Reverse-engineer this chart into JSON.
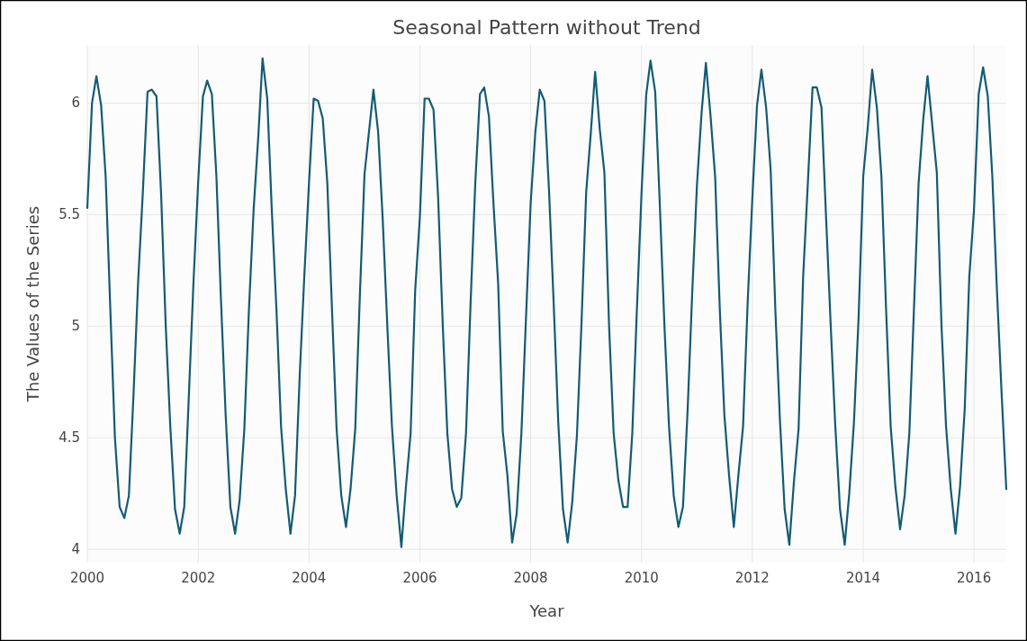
{
  "chart_data": {
    "type": "line",
    "title": "Seasonal Pattern without Trend",
    "xlabel": "Year",
    "ylabel": "The Values of the Series",
    "x": [
      "2000-01",
      "2000-02",
      "2000-03",
      "2000-04",
      "2000-05",
      "2000-06",
      "2000-07",
      "2000-08",
      "2000-09",
      "2000-10",
      "2000-11",
      "2000-12",
      "2001-01",
      "2001-02",
      "2001-03",
      "2001-04",
      "2001-05",
      "2001-06",
      "2001-07",
      "2001-08",
      "2001-09",
      "2001-10",
      "2001-11",
      "2001-12",
      "2002-01",
      "2002-02",
      "2002-03",
      "2002-04",
      "2002-05",
      "2002-06",
      "2002-07",
      "2002-08",
      "2002-09",
      "2002-10",
      "2002-11",
      "2002-12",
      "2003-01",
      "2003-02",
      "2003-03",
      "2003-04",
      "2003-05",
      "2003-06",
      "2003-07",
      "2003-08",
      "2003-09",
      "2003-10",
      "2003-11",
      "2003-12",
      "2004-01",
      "2004-02",
      "2004-03",
      "2004-04",
      "2004-05",
      "2004-06",
      "2004-07",
      "2004-08",
      "2004-09",
      "2004-10",
      "2004-11",
      "2004-12",
      "2005-01",
      "2005-02",
      "2005-03",
      "2005-04",
      "2005-05",
      "2005-06",
      "2005-07",
      "2005-08",
      "2005-09",
      "2005-10",
      "2005-11",
      "2005-12",
      "2006-01",
      "2006-02",
      "2006-03",
      "2006-04",
      "2006-05",
      "2006-06",
      "2006-07",
      "2006-08",
      "2006-09",
      "2006-10",
      "2006-11",
      "2006-12",
      "2007-01",
      "2007-02",
      "2007-03",
      "2007-04",
      "2007-05",
      "2007-06",
      "2007-07",
      "2007-08",
      "2007-09",
      "2007-10",
      "2007-11",
      "2007-12",
      "2008-01",
      "2008-02",
      "2008-03",
      "2008-04",
      "2008-05",
      "2008-06",
      "2008-07",
      "2008-08",
      "2008-09",
      "2008-10",
      "2008-11",
      "2008-12",
      "2009-01",
      "2009-02",
      "2009-03",
      "2009-04",
      "2009-05",
      "2009-06",
      "2009-07",
      "2009-08",
      "2009-09",
      "2009-10",
      "2009-11",
      "2009-12",
      "2010-01",
      "2010-02",
      "2010-03",
      "2010-04",
      "2010-05",
      "2010-06",
      "2010-07",
      "2010-08",
      "2010-09",
      "2010-10",
      "2010-11",
      "2010-12",
      "2011-01",
      "2011-02",
      "2011-03",
      "2011-04",
      "2011-05",
      "2011-06",
      "2011-07",
      "2011-08",
      "2011-09",
      "2011-10",
      "2011-11",
      "2011-12",
      "2012-01",
      "2012-02",
      "2012-03",
      "2012-04",
      "2012-05",
      "2012-06",
      "2012-07",
      "2012-08",
      "2012-09",
      "2012-10",
      "2012-11",
      "2012-12",
      "2013-01",
      "2013-02",
      "2013-03",
      "2013-04",
      "2013-05",
      "2013-06",
      "2013-07",
      "2013-08",
      "2013-09",
      "2013-10",
      "2013-11",
      "2013-12",
      "2014-01",
      "2014-02",
      "2014-03",
      "2014-04",
      "2014-05",
      "2014-06",
      "2014-07",
      "2014-08",
      "2014-09",
      "2014-10",
      "2014-11",
      "2014-12",
      "2015-01",
      "2015-02",
      "2015-03",
      "2015-04",
      "2015-05",
      "2015-06",
      "2015-07",
      "2015-08",
      "2015-09",
      "2015-10",
      "2015-11",
      "2015-12",
      "2016-01",
      "2016-02",
      "2016-03",
      "2016-04",
      "2016-05",
      "2016-06",
      "2016-07",
      "2016-08"
    ],
    "series": [
      {
        "color": "#135b74",
        "values": [
          5.53,
          6.0,
          6.12,
          5.99,
          5.67,
          5.07,
          4.5,
          4.19,
          4.14,
          4.24,
          4.7,
          5.2,
          5.6,
          6.05,
          6.06,
          6.03,
          5.6,
          5.0,
          4.55,
          4.18,
          4.07,
          4.19,
          4.7,
          5.2,
          5.65,
          6.03,
          6.1,
          6.04,
          5.67,
          5.1,
          4.6,
          4.19,
          4.07,
          4.22,
          4.54,
          5.07,
          5.52,
          5.85,
          6.2,
          6.02,
          5.52,
          5.07,
          4.55,
          4.27,
          4.07,
          4.24,
          4.78,
          5.22,
          5.64,
          6.02,
          6.01,
          5.93,
          5.64,
          5.07,
          4.54,
          4.24,
          4.1,
          4.27,
          4.54,
          5.13,
          5.68,
          5.88,
          6.06,
          5.87,
          5.48,
          4.99,
          4.55,
          4.24,
          4.01,
          4.28,
          4.52,
          5.16,
          5.49,
          6.02,
          6.02,
          5.97,
          5.58,
          5.0,
          4.52,
          4.27,
          4.19,
          4.23,
          4.52,
          5.1,
          5.64,
          6.04,
          6.07,
          5.94,
          5.55,
          5.19,
          4.53,
          4.33,
          4.03,
          4.16,
          4.52,
          5.03,
          5.55,
          5.87,
          6.06,
          6.01,
          5.61,
          5.1,
          4.57,
          4.18,
          4.03,
          4.21,
          4.51,
          5.01,
          5.6,
          5.87,
          6.14,
          5.88,
          5.69,
          5.0,
          4.52,
          4.31,
          4.19,
          4.19,
          4.52,
          5.07,
          5.6,
          6.04,
          6.19,
          6.05,
          5.55,
          5.0,
          4.55,
          4.24,
          4.1,
          4.19,
          4.63,
          5.15,
          5.63,
          5.96,
          6.18,
          5.94,
          5.67,
          5.07,
          4.6,
          4.33,
          4.1,
          4.33,
          4.55,
          5.1,
          5.57,
          5.99,
          6.15,
          5.98,
          5.7,
          5.07,
          4.58,
          4.18,
          4.02,
          4.3,
          4.54,
          5.22,
          5.64,
          6.07,
          6.07,
          5.98,
          5.49,
          5.0,
          4.55,
          4.18,
          4.02,
          4.25,
          4.57,
          5.03,
          5.67,
          5.9,
          6.15,
          5.98,
          5.67,
          5.07,
          4.55,
          4.28,
          4.09,
          4.24,
          4.52,
          5.07,
          5.64,
          5.93,
          6.12,
          5.9,
          5.69,
          5.0,
          4.55,
          4.27,
          4.07,
          4.28,
          4.63,
          5.22,
          5.52,
          6.04,
          6.16,
          6.03,
          5.67,
          5.15,
          4.7,
          4.27
        ]
      }
    ],
    "xlim": [
      "2000-01",
      "2016-08"
    ],
    "xticks": [
      "2000",
      "2002",
      "2004",
      "2006",
      "2008",
      "2010",
      "2012",
      "2014",
      "2016"
    ],
    "ylim": [
      3.94,
      6.26
    ],
    "yticks": [
      4,
      4.5,
      5,
      5.5,
      6
    ],
    "grid": true,
    "line_style": "solid",
    "marker": "none"
  }
}
